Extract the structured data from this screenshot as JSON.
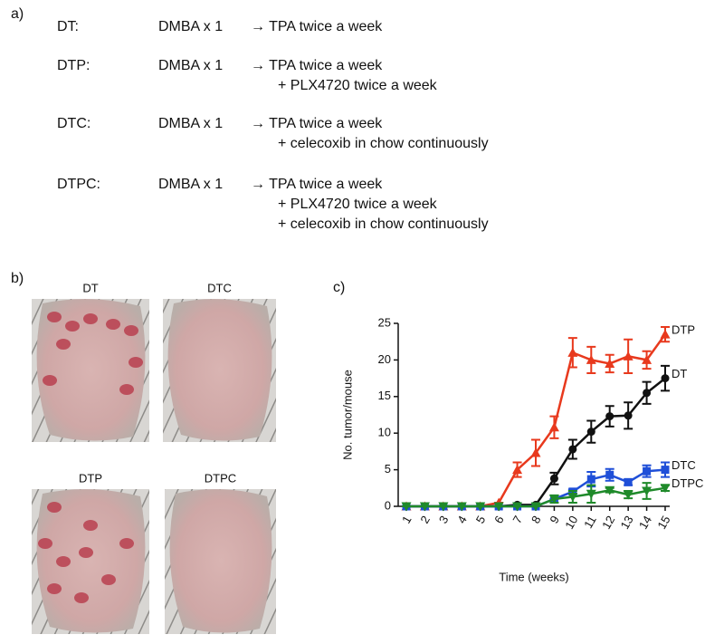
{
  "panel_a": {
    "label": "a)",
    "rows": [
      {
        "group": "DT:",
        "initiation": "DMBA x 1",
        "steps": [
          "→ TPA twice a week"
        ]
      },
      {
        "group": "DTP:",
        "initiation": "DMBA x 1",
        "steps": [
          "→ TPA twice a week",
          "+ PLX4720 twice a week"
        ]
      },
      {
        "group": "DTC:",
        "initiation": "DMBA x 1",
        "steps": [
          "→ TPA twice a week",
          "+ celecoxib in chow continuously"
        ]
      },
      {
        "group": "DTPC:",
        "initiation": "DMBA x 1",
        "steps": [
          "→ TPA twice a week",
          "+ PLX4720 twice a week",
          "+ celecoxib in chow continuously"
        ]
      }
    ]
  },
  "panel_b": {
    "label": "b)",
    "photos": [
      "DT",
      "DTC",
      "DTP",
      "DTPC"
    ]
  },
  "chart_data": {
    "type": "line",
    "panel_label": "c)",
    "y_label": "No. tumor/mouse",
    "x_label": "Time (weeks)",
    "categories": [
      "1",
      "2",
      "3",
      "4",
      "5",
      "6",
      "7",
      "8",
      "9",
      "10",
      "11",
      "12",
      "13",
      "14",
      "15"
    ],
    "ylim": [
      0,
      25
    ],
    "yticks": [
      0,
      5,
      10,
      15,
      20,
      25
    ],
    "series": [
      {
        "name": "DTP",
        "color": "#e8391d",
        "marker": "triangle-up",
        "values": [
          0,
          0,
          0,
          0,
          0,
          0.5,
          5,
          7.3,
          10.8,
          21,
          20,
          19.5,
          20.5,
          20,
          23.5
        ],
        "errors": [
          0,
          0,
          0,
          0,
          0,
          0,
          1,
          1.8,
          1.5,
          2,
          1.8,
          1.2,
          2.3,
          1.2,
          1
        ]
      },
      {
        "name": "DT",
        "color": "#111111",
        "marker": "circle",
        "values": [
          0,
          0,
          0,
          0,
          0,
          0,
          0.2,
          0.2,
          3.8,
          7.8,
          10.2,
          12.3,
          12.4,
          15.5,
          17.5
        ],
        "errors": [
          0,
          0,
          0,
          0,
          0,
          0,
          0,
          0,
          0.8,
          1.3,
          1.5,
          1.4,
          1.8,
          1.5,
          1.7
        ]
      },
      {
        "name": "DTC",
        "color": "#1f4fd8",
        "marker": "square",
        "values": [
          0,
          0,
          0,
          0,
          0,
          0,
          0,
          0,
          1,
          2,
          3.7,
          4.3,
          3.3,
          4.8,
          5
        ],
        "errors": [
          0,
          0,
          0,
          0,
          0,
          0,
          0,
          0,
          0,
          0.3,
          1,
          0.8,
          0.4,
          0.8,
          1
        ]
      },
      {
        "name": "DTPC",
        "color": "#1f8a2a",
        "marker": "triangle-down",
        "values": [
          0,
          0,
          0,
          0,
          0,
          0,
          0,
          0,
          1,
          1.3,
          1.7,
          2.2,
          1.6,
          2.1,
          2.5
        ],
        "errors": [
          0,
          0,
          0,
          0,
          0,
          0,
          0,
          0,
          0.5,
          0.8,
          1.2,
          0.3,
          0.5,
          1.1,
          0.4
        ]
      }
    ]
  }
}
